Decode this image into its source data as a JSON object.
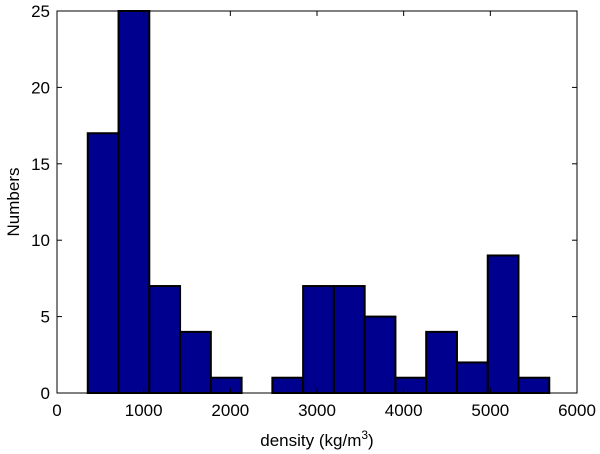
{
  "chart_data": {
    "type": "bar",
    "title": "",
    "xlabel": "density (kg/m",
    "xlabel_superscript": "3",
    "xlabel_suffix": ")",
    "ylabel": "Numbers",
    "xlim": [
      0,
      6000
    ],
    "ylim": [
      0,
      25
    ],
    "xticks": [
      0,
      1000,
      2000,
      3000,
      4000,
      5000,
      6000
    ],
    "yticks": [
      0,
      5,
      10,
      15,
      20,
      25
    ],
    "grid": false,
    "legend": "none",
    "bar_color": "#00008f",
    "bins": [
      {
        "x0": 355,
        "x1": 710,
        "value": 17
      },
      {
        "x0": 710,
        "x1": 1065,
        "value": 25
      },
      {
        "x0": 1065,
        "x1": 1420,
        "value": 7
      },
      {
        "x0": 1420,
        "x1": 1775,
        "value": 4
      },
      {
        "x0": 1775,
        "x1": 2130,
        "value": 1
      },
      {
        "x0": 2130,
        "x1": 2485,
        "value": 0
      },
      {
        "x0": 2485,
        "x1": 2840,
        "value": 1
      },
      {
        "x0": 2840,
        "x1": 3195,
        "value": 7
      },
      {
        "x0": 3195,
        "x1": 3550,
        "value": 7
      },
      {
        "x0": 3550,
        "x1": 3905,
        "value": 5
      },
      {
        "x0": 3905,
        "x1": 4260,
        "value": 1
      },
      {
        "x0": 4260,
        "x1": 4615,
        "value": 4
      },
      {
        "x0": 4615,
        "x1": 4970,
        "value": 2
      },
      {
        "x0": 4970,
        "x1": 5325,
        "value": 9
      },
      {
        "x0": 5325,
        "x1": 5680,
        "value": 1
      }
    ]
  }
}
